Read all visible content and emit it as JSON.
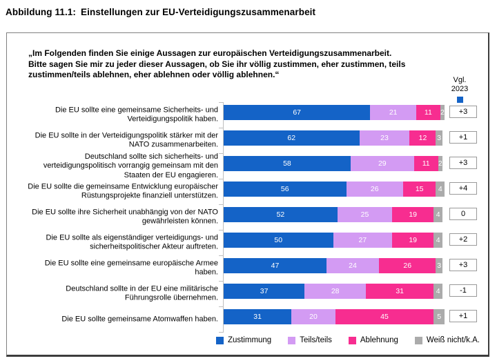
{
  "page": {
    "title_prefix": "Abbildung 11.1:",
    "title_main": "Einstellungen zur EU-Verteidigungszusammenarbeit"
  },
  "intro": {
    "lines": [
      "„Im Folgenden finden Sie einige Aussagen zur europäischen Verteidigungszusammenarbeit.",
      "Bitte sagen Sie mir zu jeder dieser Aussagen, ob Sie ihr völlig zustimmen, eher zustimmen, teils",
      "zustimmen/teils ablehnen, eher ablehnen oder völlig ablehnen.“"
    ]
  },
  "vgl_header": {
    "line1": "Vgl.",
    "line2": "2023"
  },
  "chart_data": {
    "type": "bar",
    "stacked": true,
    "orientation": "horizontal",
    "unit": "percent",
    "xlim": [
      0,
      101
    ],
    "grid": false,
    "legend_position": "bottom-right",
    "series_names": [
      "Zustimmung",
      "Teils/teils",
      "Ablehnung",
      "Weiß nicht/k.A."
    ],
    "colors": [
      "#1463c7",
      "#d39bf3",
      "#f72d90",
      "#ababab"
    ],
    "comparison_column_header": "Vgl. 2023",
    "rows": [
      {
        "label": "Die EU sollte eine gemeinsame Sicherheits- und Verteidigungspolitik haben.",
        "values": [
          67,
          21,
          11,
          2
        ],
        "vgl": "+3"
      },
      {
        "label": "Die EU sollte in der Verteidigungspolitik stärker mit der NATO zusammenarbeiten.",
        "values": [
          62,
          23,
          12,
          3
        ],
        "vgl": "+1"
      },
      {
        "label": "Deutschland sollte sich sicherheits- und verteidigungspolitisch vorrangig gemeinsam mit den Staaten der EU engagieren.",
        "values": [
          58,
          29,
          11,
          2
        ],
        "vgl": "+3"
      },
      {
        "label": "Die EU sollte die gemeinsame Entwicklung europäischer Rüstungsprojekte finanziell unterstützen.",
        "values": [
          56,
          26,
          15,
          4
        ],
        "vgl": "+4"
      },
      {
        "label": "Die EU sollte ihre Sicherheit unabhängig von der NATO gewährleisten können.",
        "values": [
          52,
          25,
          19,
          4
        ],
        "vgl": "0"
      },
      {
        "label": "Die EU sollte als eigenständiger verteidigungs- und sicherheitspolitischer Akteur auftreten.",
        "values": [
          50,
          27,
          19,
          4
        ],
        "vgl": "+2"
      },
      {
        "label": "Die EU sollte eine gemeinsame europäische Armee haben.",
        "values": [
          47,
          24,
          26,
          3
        ],
        "vgl": "+3"
      },
      {
        "label": "Deutschland sollte in der EU eine militärische Führungsrolle übernehmen.",
        "values": [
          37,
          28,
          31,
          4
        ],
        "vgl": "-1"
      },
      {
        "label": "Die EU sollte gemeinsame Atomwaffen haben.",
        "values": [
          31,
          20,
          45,
          5
        ],
        "vgl": "+1"
      }
    ]
  },
  "accent_color": "#1463c7"
}
